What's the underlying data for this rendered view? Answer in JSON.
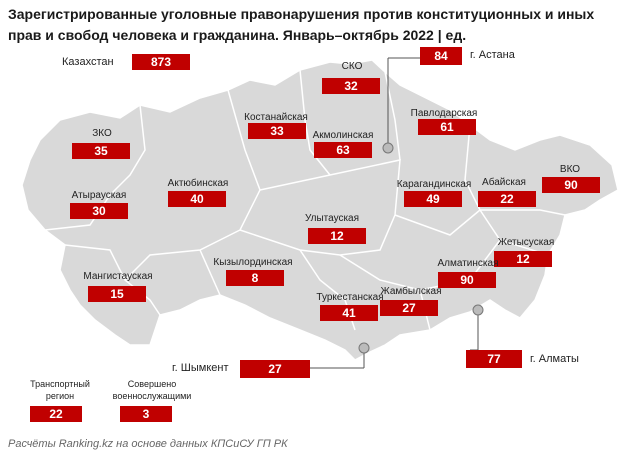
{
  "title": "Зарегистрированные уголовные правонарушения против конституционных и иных прав и свобод человека и гражданина. Январь–октябрь 2022 | ед.",
  "footnote": "Расчёты Ranking.kz на основе данных КПСиСУ ГП РК",
  "colors": {
    "accent": "#c00000",
    "map_fill": "#d9d9d9",
    "map_border": "#ffffff"
  },
  "total": {
    "label": "Казахстан",
    "value": "873"
  },
  "regions": {
    "sko": {
      "label": "СКО",
      "value": "32"
    },
    "kostanay": {
      "label": "Костанайская",
      "value": "33"
    },
    "akmola": {
      "label": "Акмолинская",
      "value": "63"
    },
    "pavlodar": {
      "label": "Павлодарская",
      "value": "61"
    },
    "zko": {
      "label": "ЗКО",
      "value": "35"
    },
    "atyrau": {
      "label": "Атырауская",
      "value": "30"
    },
    "aktobe": {
      "label": "Актюбинская",
      "value": "40"
    },
    "karaganda": {
      "label": "Карагандинская",
      "value": "49"
    },
    "abay": {
      "label": "Абайская",
      "value": "22"
    },
    "vko": {
      "label": "ВКО",
      "value": "90"
    },
    "ulytau": {
      "label": "Улытауская",
      "value": "12"
    },
    "zhetysu": {
      "label": "Жетысуская",
      "value": "12"
    },
    "kyzylorda": {
      "label": "Кызылординская",
      "value": "8"
    },
    "almaty_obl": {
      "label": "Алматинская",
      "value": "90"
    },
    "mangystau": {
      "label": "Мангистауская",
      "value": "15"
    },
    "zhambyl": {
      "label": "Жамбылская",
      "value": "27"
    },
    "turkestan": {
      "label": "Туркестанская",
      "value": "41"
    }
  },
  "cities": {
    "astana": {
      "label": "г. Астана",
      "value": "84"
    },
    "shymkent": {
      "label": "г. Шымкент",
      "value": "27"
    },
    "almaty": {
      "label": "г. Алматы",
      "value": "77"
    }
  },
  "extras": {
    "transport": {
      "label": "Транспортный регион",
      "value": "22"
    },
    "military": {
      "label": "Совершено военнослужащими",
      "value": "3"
    }
  }
}
